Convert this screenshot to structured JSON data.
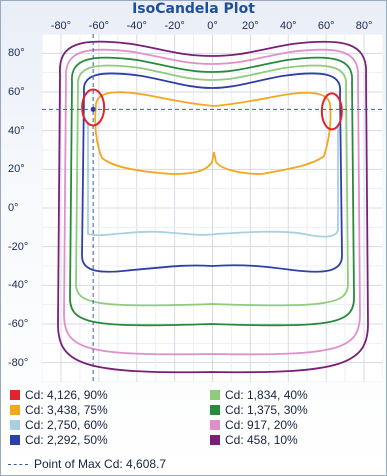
{
  "chart_data": {
    "type": "contour",
    "title": "IsoCandela Plot",
    "x_ticks": [
      "-80°",
      "-60°",
      "-40°",
      "-20°",
      "0°",
      "20°",
      "40°",
      "60°",
      "80°"
    ],
    "y_ticks": [
      "80°",
      "60°",
      "40°",
      "20°",
      "0°",
      "-20°",
      "-40°",
      "-60°",
      "-80°"
    ],
    "xlim": [
      -90,
      90
    ],
    "ylim": [
      -90,
      90
    ],
    "grid": true,
    "legend_position": "bottom",
    "series": [
      {
        "label": "Cd: 4,126, 90%",
        "color": "#e0242c"
      },
      {
        "label": "Cd: 3,438, 75%",
        "color": "#f2a81c"
      },
      {
        "label": "Cd: 2,750, 60%",
        "color": "#a8cfe2"
      },
      {
        "label": "Cd: 2,292, 50%",
        "color": "#2e3fa8"
      },
      {
        "label": "Cd: 1,834, 40%",
        "color": "#8fcc7a"
      },
      {
        "label": "Cd: 1,375, 30%",
        "color": "#2a8a3c"
      },
      {
        "label": "Cd: 917, 20%",
        "color": "#e090c8"
      },
      {
        "label": "Cd: 458, 10%",
        "color": "#7a1f78"
      }
    ],
    "max_point": {
      "label": "Point of Max Cd: 4,608.7",
      "x": -63,
      "y": 51
    }
  }
}
